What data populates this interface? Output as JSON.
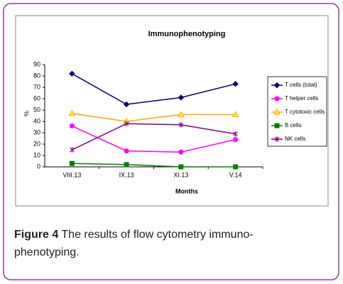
{
  "chart_data": {
    "type": "line",
    "title": "Immunophenotyping",
    "x_label": "Months",
    "y_label": "%",
    "categories": [
      "VIII.13",
      "IX.13",
      "XI.13",
      "V.14"
    ],
    "series": [
      {
        "name": "T cells (total)",
        "color": "#000080",
        "marker": "diamond",
        "values": [
          82,
          55,
          61,
          73
        ]
      },
      {
        "name": "T helper cells",
        "color": "#ff00ff",
        "marker": "circle",
        "values": [
          36,
          14,
          13,
          24
        ]
      },
      {
        "name": "T cytotoxic cells",
        "color": "#ffa500",
        "marker": "triangle",
        "values": [
          47,
          40,
          46,
          46
        ]
      },
      {
        "name": "B cells",
        "color": "#008000",
        "marker": "square",
        "values": [
          3,
          2,
          0,
          0
        ]
      },
      {
        "name": "NK cells",
        "color": "#800080",
        "marker": "star",
        "values": [
          15,
          38,
          37,
          29
        ]
      }
    ],
    "ylim": [
      0,
      90
    ],
    "yticks": [
      0,
      10,
      20,
      30,
      40,
      50,
      60,
      70,
      80,
      90
    ],
    "grid": false,
    "legend": "right"
  },
  "caption": {
    "label": "Figure 4",
    "text": "The results of flow cytometry immuno-phenotyping."
  }
}
